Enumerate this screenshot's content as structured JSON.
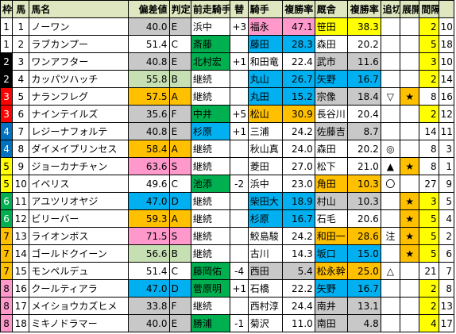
{
  "header": [
    "枠",
    "馬",
    "馬名",
    "偏差値",
    "判定",
    "前走騎手",
    "替",
    "騎手",
    "複勝率",
    "厩舎",
    "複勝率",
    "追切",
    "展開",
    "間隔",
    ""
  ],
  "waku_colors": {
    "1": "#ffffff",
    "2": "#000000",
    "3": "#ff0000",
    "4": "#0070c0",
    "5": "#ffff00",
    "6": "#00b050",
    "7": "#ffc000",
    "8": "#ff99cc"
  },
  "rows": [
    {
      "waku": "1",
      "num": "1",
      "name": "ノーワン",
      "hensa": "40.0",
      "hantei": "E",
      "prev": "浜中",
      "kae": "+3",
      "jockey": "福永",
      "jrate": "47.1",
      "trainer": "笹田",
      "trate": "38.3",
      "oi": "",
      "ten": "",
      "kankaku": "2",
      "last": "10",
      "hbg": "gray",
      "pbg": "",
      "jbg": "pink",
      "tbg": "yellow",
      "ibg": "yellow"
    },
    {
      "waku": "1",
      "num": "2",
      "name": "ラブカンプー",
      "hensa": "51.4",
      "hantei": "C",
      "prev": "斎藤",
      "kae": "",
      "jockey": "藤田",
      "jrate": "28.3",
      "trainer": "森田",
      "trate": "20.2",
      "oi": "",
      "ten": "",
      "kankaku": "5",
      "last": "18",
      "hbg": "",
      "pbg": "green",
      "jbg": "cyan",
      "tbg": "",
      "ibg": "yellow"
    },
    {
      "waku": "2",
      "num": "3",
      "name": "ワンアフター",
      "hensa": "40.8",
      "hantei": "E",
      "prev": "北村宏",
      "kae": "+1",
      "jockey": "和田竜",
      "jrate": "22.4",
      "trainer": "武市",
      "trate": "11.6",
      "oi": "",
      "ten": "",
      "kankaku": "3",
      "last": "10",
      "hbg": "gray",
      "pbg": "green",
      "jbg": "",
      "tbg": "gray",
      "ibg": "yellow"
    },
    {
      "waku": "2",
      "num": "4",
      "name": "カッパツハッチ",
      "hensa": "55.8",
      "hantei": "B",
      "prev": "継続",
      "kae": "",
      "jockey": "丸山",
      "jrate": "26.7",
      "trainer": "矢野",
      "trate": "16.7",
      "oi": "",
      "ten": "",
      "kankaku": "2",
      "last": "14",
      "hbg": "lightgreen",
      "pbg": "",
      "jbg": "cyan",
      "tbg": "cyan",
      "ibg": "yellow"
    },
    {
      "waku": "3",
      "num": "5",
      "name": "ナランフレグ",
      "hensa": "57.5",
      "hantei": "A",
      "prev": "継続",
      "kae": "",
      "jockey": "丸田",
      "jrate": "15.2",
      "trainer": "宗像",
      "trate": "18.4",
      "oi": "▽",
      "ten": "★",
      "kankaku": "8",
      "last": "16",
      "hbg": "orange",
      "pbg": "",
      "jbg": "cyan",
      "tbg": "gray",
      "ibg": ""
    },
    {
      "waku": "3",
      "num": "6",
      "name": "ナインテイルズ",
      "hensa": "35.6",
      "hantei": "F",
      "prev": "中井",
      "kae": "+5",
      "jockey": "松山",
      "jrate": "30.9",
      "trainer": "長谷川",
      "trate": "20.4",
      "oi": "",
      "ten": "",
      "kankaku": "2",
      "last": "12",
      "hbg": "gray",
      "pbg": "green",
      "jbg": "orange",
      "tbg": "",
      "ibg": "yellow"
    },
    {
      "waku": "4",
      "num": "7",
      "name": "レジーナフォルテ",
      "hensa": "40.8",
      "hantei": "E",
      "prev": "杉原",
      "kae": "+1",
      "jockey": "三浦",
      "jrate": "24.2",
      "trainer": "佐藤吉",
      "trate": "8.7",
      "oi": "",
      "ten": "",
      "kankaku": "14",
      "last": "11",
      "hbg": "gray",
      "pbg": "cyan",
      "jbg": "",
      "tbg": "gray",
      "ibg": ""
    },
    {
      "waku": "4",
      "num": "8",
      "name": "ダイメイプリンセス",
      "hensa": "58.4",
      "hantei": "A",
      "prev": "継続",
      "kae": "",
      "jockey": "秋山真",
      "jrate": "24.0",
      "trainer": "森田",
      "trate": "20.2",
      "oi": "◎",
      "ten": "",
      "kankaku": "8",
      "last": "3",
      "hbg": "orange",
      "pbg": "",
      "jbg": "",
      "tbg": "",
      "ibg": ""
    },
    {
      "waku": "5",
      "num": "9",
      "name": "ジョーカナチャン",
      "hensa": "63.6",
      "hantei": "S",
      "prev": "継続",
      "kae": "",
      "jockey": "菱田",
      "jrate": "27.0",
      "trainer": "松下",
      "trate": "21.0",
      "oi": "▲",
      "ten": "★",
      "kankaku": "8",
      "last": "1",
      "hbg": "pink",
      "pbg": "",
      "jbg": "",
      "tbg": "",
      "ibg": ""
    },
    {
      "waku": "5",
      "num": "10",
      "name": "イベリス",
      "hensa": "49.6",
      "hantei": "C",
      "prev": "池添",
      "kae": "-2",
      "jockey": "浜中",
      "jrate": "23.0",
      "trainer": "角田",
      "trate": "10.3",
      "oi": "〇",
      "ten": "",
      "kankaku": "27",
      "last": "9",
      "hbg": "",
      "pbg": "green",
      "jbg": "",
      "tbg": "orange",
      "ibg": ""
    },
    {
      "waku": "6",
      "num": "11",
      "name": "アユツリオヤジ",
      "hensa": "47.0",
      "hantei": "D",
      "prev": "継続",
      "kae": "",
      "jockey": "柴田大",
      "jrate": "18.9",
      "trainer": "村山",
      "trate": "10.3",
      "oi": "",
      "ten": "★",
      "kankaku": "3",
      "last": "5",
      "hbg": "cyan",
      "pbg": "",
      "jbg": "cyan",
      "tbg": "gray",
      "ibg": "yellow"
    },
    {
      "waku": "6",
      "num": "12",
      "name": "ビリーバー",
      "hensa": "59.3",
      "hantei": "A",
      "prev": "継続",
      "kae": "",
      "jockey": "杉原",
      "jrate": "16.7",
      "trainer": "石毛",
      "trate": "20.6",
      "oi": "",
      "ten": "★",
      "kankaku": "5",
      "last": "4",
      "hbg": "orange",
      "pbg": "",
      "jbg": "cyan",
      "tbg": "",
      "ibg": "yellow"
    },
    {
      "waku": "7",
      "num": "13",
      "name": "ライオンボス",
      "hensa": "71.5",
      "hantei": "S",
      "prev": "継続",
      "kae": "",
      "jockey": "鮫島駿",
      "jrate": "24.2",
      "trainer": "和田一",
      "trate": "28.6",
      "oi": "注",
      "ten": "★",
      "kankaku": "5",
      "last": "2",
      "hbg": "pink",
      "pbg": "",
      "jbg": "",
      "tbg": "orange",
      "ibg": "yellow"
    },
    {
      "waku": "7",
      "num": "14",
      "name": "ゴールドクイーン",
      "hensa": "56.6",
      "hantei": "B",
      "prev": "継続",
      "kae": "",
      "jockey": "古川",
      "jrate": "14.3",
      "trainer": "坂口",
      "trate": "15.0",
      "oi": "",
      "ten": "★",
      "kankaku": "5",
      "last": "6",
      "hbg": "lightgreen",
      "pbg": "",
      "jbg": "",
      "tbg": "cyan",
      "ibg": "yellow"
    },
    {
      "waku": "7",
      "num": "15",
      "name": "モンペルデュ",
      "hensa": "51.4",
      "hantei": "C",
      "prev": "藤岡佑",
      "kae": "-4",
      "jockey": "西田",
      "jrate": "5.4",
      "trainer": "松永幹",
      "trate": "25.0",
      "oi": "△",
      "ten": "",
      "kankaku": "21",
      "last": "7",
      "hbg": "",
      "pbg": "green",
      "jbg": "gray",
      "tbg": "orange",
      "ibg": ""
    },
    {
      "waku": "8",
      "num": "16",
      "name": "クールティアラ",
      "hensa": "47.0",
      "hantei": "D",
      "prev": "菅原明",
      "kae": "+1",
      "jockey": "石橋",
      "jrate": "22.2",
      "trainer": "矢野",
      "trate": "16.7",
      "oi": "",
      "ten": "",
      "kankaku": "2",
      "last": "8",
      "hbg": "cyan",
      "pbg": "green",
      "jbg": "",
      "tbg": "cyan",
      "ibg": "yellow"
    },
    {
      "waku": "8",
      "num": "17",
      "name": "メイショウカズヒメ",
      "hensa": "33.8",
      "hantei": "F",
      "prev": "継続",
      "kae": "",
      "jockey": "西村淳",
      "jrate": "24.4",
      "trainer": "南井",
      "trate": "13.1",
      "oi": "",
      "ten": "",
      "kankaku": "2",
      "last": "13",
      "hbg": "gray",
      "pbg": "",
      "jbg": "",
      "tbg": "gray",
      "ibg": "yellow"
    },
    {
      "waku": "8",
      "num": "18",
      "name": "ミキノドラマー",
      "hensa": "40.0",
      "hantei": "E",
      "prev": "勝浦",
      "kae": "-1",
      "jockey": "菊沢",
      "jrate": "11.0",
      "trainer": "南田",
      "trate": "4.8",
      "oi": "",
      "ten": "",
      "kankaku": "4",
      "last": "17",
      "hbg": "gray",
      "pbg": "green",
      "jbg": "",
      "tbg": "gray",
      "ibg": "yellow"
    }
  ]
}
